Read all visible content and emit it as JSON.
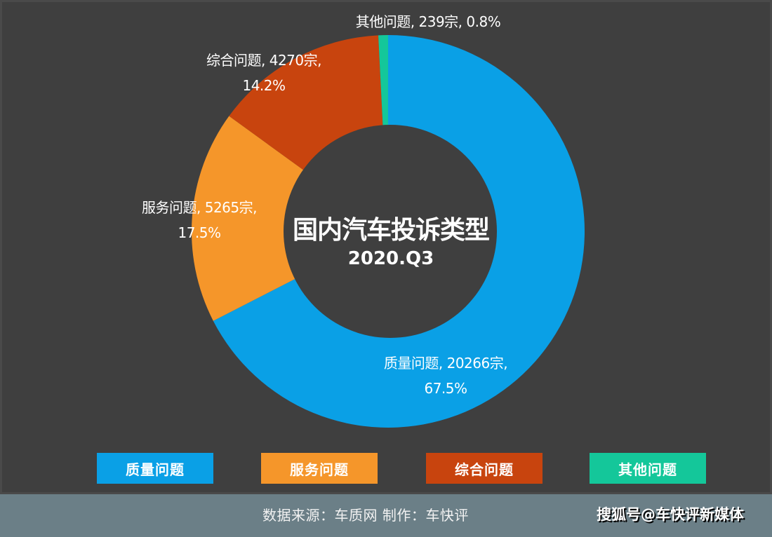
{
  "chart_data": {
    "type": "pie",
    "variant": "donut",
    "title": "国内汽车投诉类型",
    "subtitle": "2020.Q3",
    "unit": "宗",
    "categories": [
      "质量问题",
      "服务问题",
      "综合问题",
      "其他问题"
    ],
    "values": [
      20266,
      5265,
      4270,
      239
    ],
    "percentages": [
      67.5,
      17.5,
      14.2,
      0.8
    ],
    "colors": [
      "#0aa0e6",
      "#f5962a",
      "#c8440e",
      "#14c79a"
    ],
    "start_angle_deg": 0,
    "direction": "clockwise",
    "legend_position": "bottom",
    "data_labels": [
      {
        "line1": "质量问题, 20266宗,",
        "line2": "67.5%"
      },
      {
        "line1": "服务问题, 5265宗,",
        "line2": "17.5%"
      },
      {
        "line1": "综合问题, 4270宗,",
        "line2": "14.2%"
      },
      {
        "line1": "其他问题, 239宗, 0.8%",
        "line2": ""
      }
    ]
  },
  "center": {
    "title": "国内汽车投诉类型",
    "subtitle": "2020.Q3"
  },
  "legend": [
    {
      "label": "质量问题",
      "color": "#0aa0e6"
    },
    {
      "label": "服务问题",
      "color": "#f5962a"
    },
    {
      "label": "综合问题",
      "color": "#c8440e"
    },
    {
      "label": "其他问题",
      "color": "#14c79a"
    }
  ],
  "footer": {
    "source": "数据来源：车质网 制作：车快评",
    "brand": "搜狐号@车快评新媒体"
  }
}
